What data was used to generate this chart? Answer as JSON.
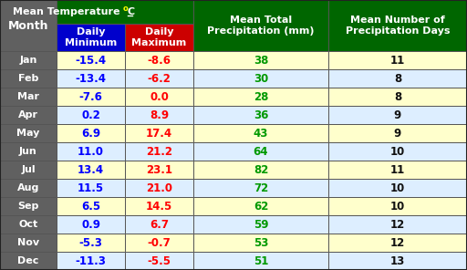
{
  "months": [
    "Jan",
    "Feb",
    "Mar",
    "Apr",
    "May",
    "Jun",
    "Jul",
    "Aug",
    "Sep",
    "Oct",
    "Nov",
    "Dec"
  ],
  "daily_min": [
    -15.4,
    -13.4,
    -7.6,
    0.2,
    6.9,
    11.0,
    13.4,
    11.5,
    6.5,
    0.9,
    -5.3,
    -11.3
  ],
  "daily_max": [
    -8.6,
    -6.2,
    0.0,
    8.9,
    17.4,
    21.2,
    23.1,
    21.0,
    14.5,
    6.7,
    -0.7,
    -5.5
  ],
  "precipitation_mm": [
    38,
    30,
    28,
    36,
    43,
    64,
    82,
    72,
    62,
    59,
    53,
    51
  ],
  "precip_days": [
    11,
    8,
    8,
    9,
    9,
    10,
    11,
    10,
    10,
    12,
    12,
    13
  ],
  "header_bg": "#006600",
  "header_text": "#FFFFFF",
  "subheader_min_bg": "#0000CC",
  "subheader_max_bg": "#CC0000",
  "subheader_text": "#FFFFFF",
  "month_bg": "#606060",
  "month_text": "#FFFFFF",
  "row_bg_odd": "#FFFFCC",
  "row_bg_even": "#DDEEFF",
  "min_text_color": "#0000FF",
  "max_text_color": "#FF0000",
  "precip_text_color": "#009900",
  "precip_days_text_color": "#111111",
  "superscript_color": "#FFFF00",
  "border_color": "#555555",
  "outer_bg": "#444444"
}
